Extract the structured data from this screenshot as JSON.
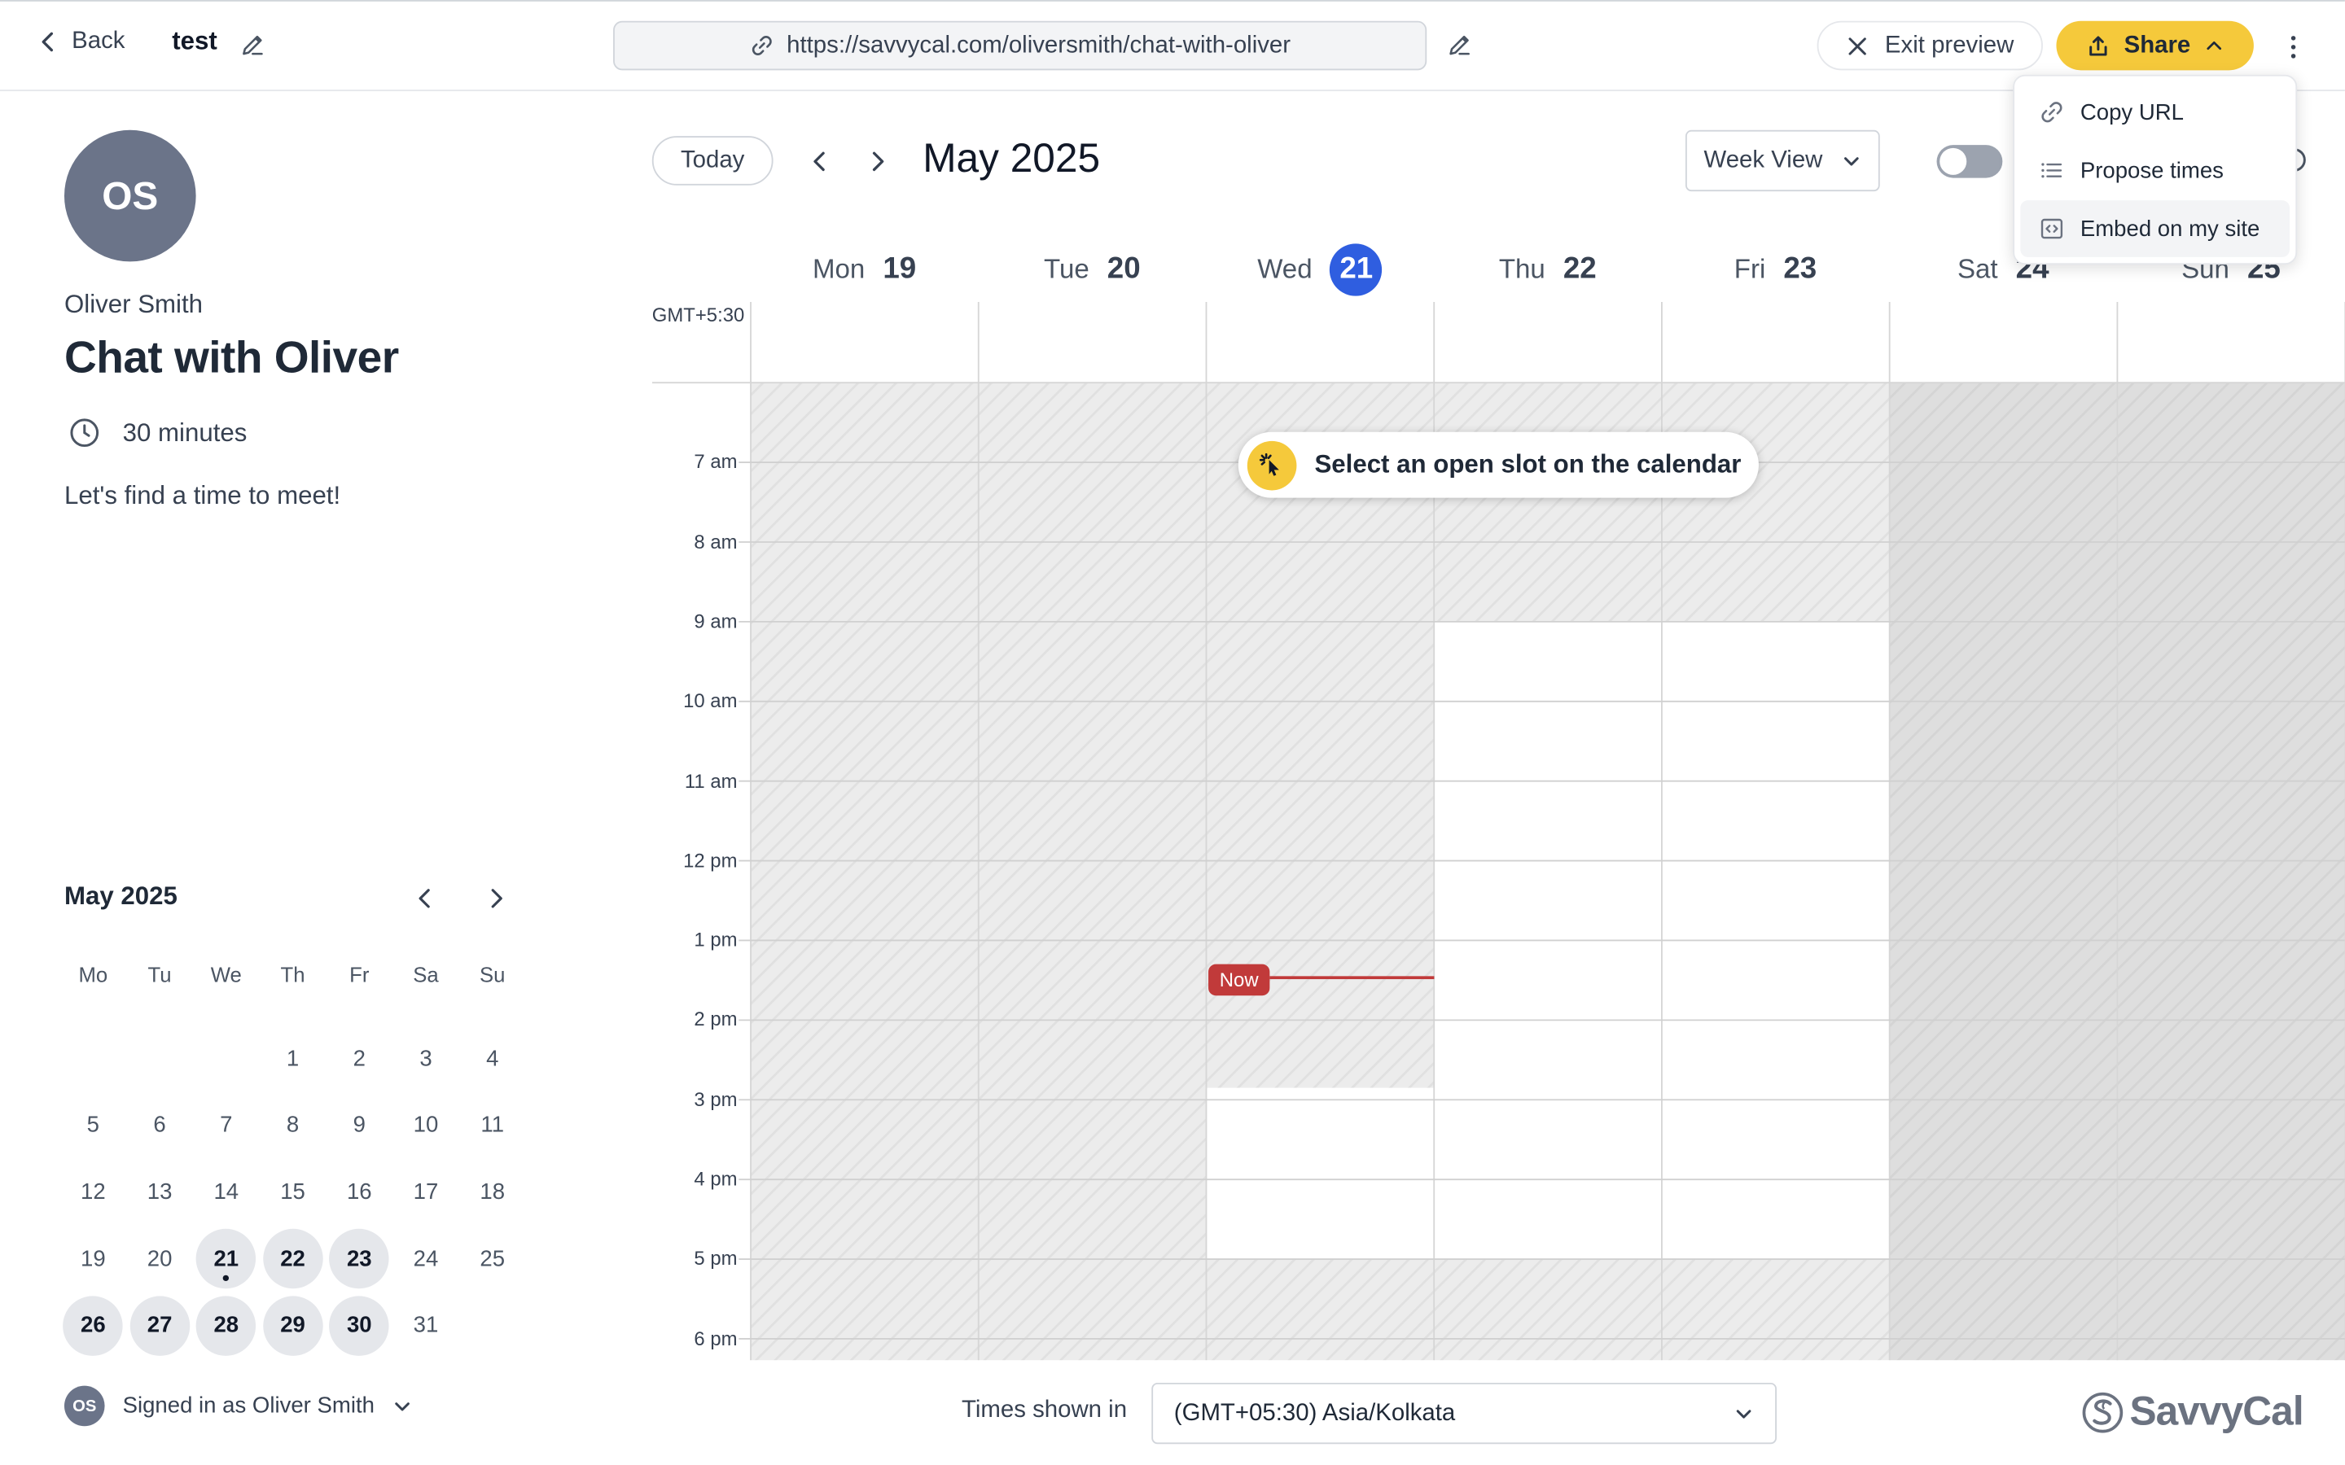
{
  "topbar": {
    "back_label": "Back",
    "page_name": "test",
    "url": "https://savvycal.com/oliversmith/chat-with-oliver",
    "exit_label": "Exit preview",
    "share_label": "Share"
  },
  "share_menu": {
    "items": [
      {
        "label": "Copy URL",
        "icon": "link-icon"
      },
      {
        "label": "Propose times",
        "icon": "list-icon"
      },
      {
        "label": "Embed on my site",
        "icon": "embed-icon"
      }
    ]
  },
  "profile": {
    "initials": "OS",
    "host_name": "Oliver Smith",
    "event_title": "Chat with Oliver",
    "duration": "30 minutes",
    "description": "Let's find a time to meet!"
  },
  "mini_calendar": {
    "title": "May 2025",
    "weekdays": [
      "Mo",
      "Tu",
      "We",
      "Th",
      "Fr",
      "Sa",
      "Su"
    ],
    "leading_blanks": 3,
    "days": [
      {
        "n": "1"
      },
      {
        "n": "2"
      },
      {
        "n": "3"
      },
      {
        "n": "4"
      },
      {
        "n": "5"
      },
      {
        "n": "6"
      },
      {
        "n": "7"
      },
      {
        "n": "8"
      },
      {
        "n": "9"
      },
      {
        "n": "10"
      },
      {
        "n": "11"
      },
      {
        "n": "12"
      },
      {
        "n": "13"
      },
      {
        "n": "14"
      },
      {
        "n": "15"
      },
      {
        "n": "16"
      },
      {
        "n": "17"
      },
      {
        "n": "18"
      },
      {
        "n": "19"
      },
      {
        "n": "20"
      },
      {
        "n": "21",
        "available": true,
        "today": true
      },
      {
        "n": "22",
        "available": true
      },
      {
        "n": "23",
        "available": true
      },
      {
        "n": "24"
      },
      {
        "n": "25"
      },
      {
        "n": "26",
        "available": true
      },
      {
        "n": "27",
        "available": true
      },
      {
        "n": "28",
        "available": true
      },
      {
        "n": "29",
        "available": true
      },
      {
        "n": "30",
        "available": true
      },
      {
        "n": "31"
      }
    ]
  },
  "signed_in": {
    "initials": "OS",
    "label": "Signed in as Oliver Smith"
  },
  "calendar": {
    "today_label": "Today",
    "title": "May 2025",
    "view_label": "Week View",
    "timezone_abbr": "GMT+5:30",
    "days": [
      {
        "name": "Mon",
        "num": "19"
      },
      {
        "name": "Tue",
        "num": "20"
      },
      {
        "name": "Wed",
        "num": "21",
        "today": true
      },
      {
        "name": "Thu",
        "num": "22"
      },
      {
        "name": "Fri",
        "num": "23"
      },
      {
        "name": "Sat",
        "num": "24"
      },
      {
        "name": "Sun",
        "num": "25"
      }
    ],
    "hours": [
      "7 am",
      "8 am",
      "9 am",
      "10 am",
      "11 am",
      "12 pm",
      "1 pm",
      "2 pm",
      "3 pm",
      "4 pm",
      "5 pm",
      "6 pm"
    ],
    "open_slots": [
      {
        "day": 2,
        "start": 14.85,
        "end": 17
      },
      {
        "day": 3,
        "start": 9,
        "end": 17
      },
      {
        "day": 4,
        "start": 9,
        "end": 17
      }
    ],
    "hint": "Select an open slot on the calendar",
    "now_label": "Now",
    "now_time": 13.5
  },
  "footer": {
    "tz_label": "Times shown in",
    "tz_value": "(GMT+05:30) Asia/Kolkata",
    "brand": "SavvyCal"
  },
  "colors": {
    "accent": "#f5c93b",
    "today": "#2f5ee0",
    "now": "#c13a3a"
  }
}
